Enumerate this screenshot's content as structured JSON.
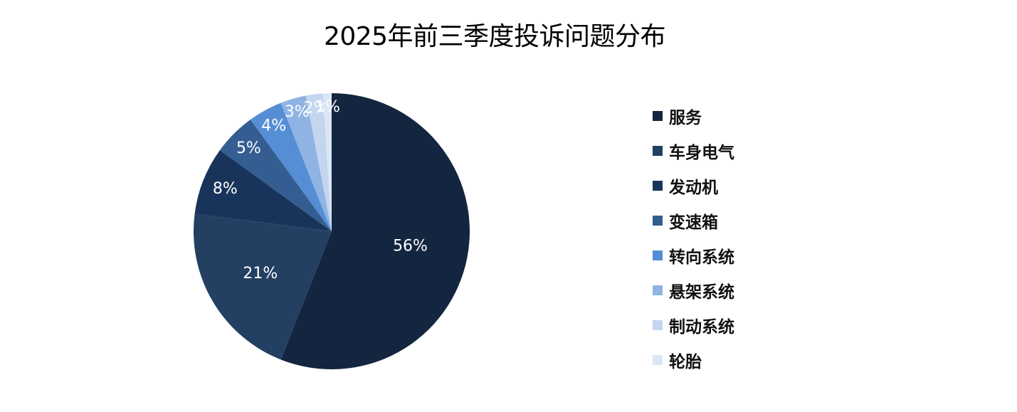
{
  "title": "2025年前三季度投诉问题分布",
  "chart_data": {
    "type": "pie",
    "title": "2025年前三季度投诉问题分布",
    "start_angle": "12 o'clock",
    "direction": "clockwise",
    "legend_position": "right",
    "slices": [
      {
        "label": "服务",
        "value": 56,
        "display": "56%",
        "color": "#13253f"
      },
      {
        "label": "车身电气",
        "value": 21,
        "display": "21%",
        "color": "#233f62"
      },
      {
        "label": "发动机",
        "value": 8,
        "display": "8%",
        "color": "#19345a"
      },
      {
        "label": "变速箱",
        "value": 5,
        "display": "5%",
        "color": "#345e92"
      },
      {
        "label": "转向系统",
        "value": 4,
        "display": "4%",
        "color": "#568ed5"
      },
      {
        "label": "悬架系统",
        "value": 3,
        "display": "3%",
        "color": "#8fb3e3"
      },
      {
        "label": "制动系统",
        "value": 2,
        "display": "2%",
        "color": "#c3d5ef"
      },
      {
        "label": "轮胎",
        "value": 1,
        "display": "1%",
        "color": "#dbe6f5"
      }
    ]
  }
}
